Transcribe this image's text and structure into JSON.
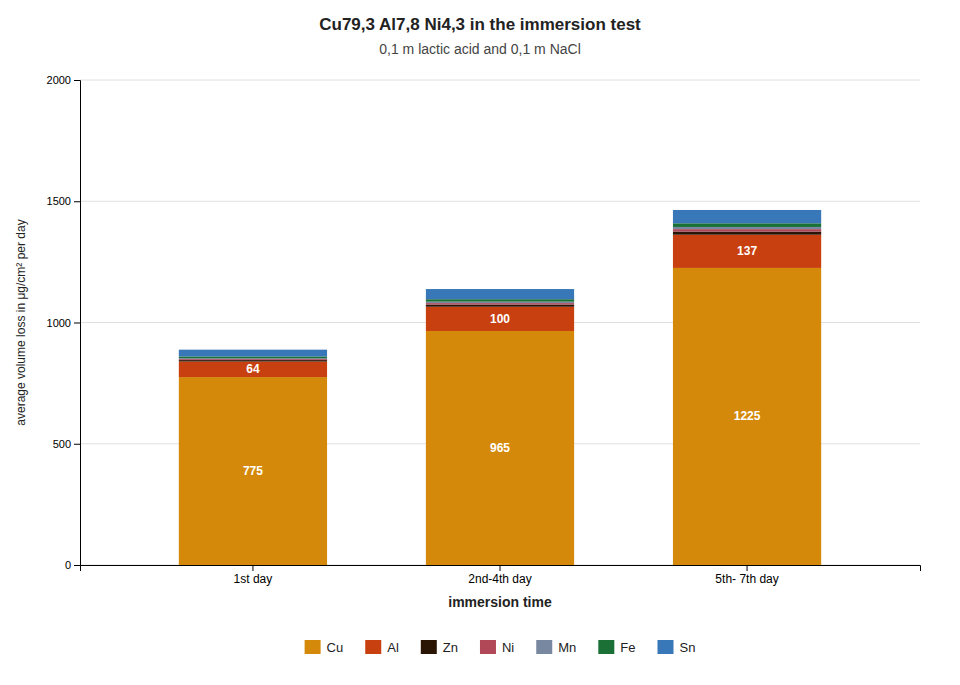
{
  "chart_data": {
    "type": "bar",
    "stacked": true,
    "title": "Cu79,3 Al7,8 Ni4,3 in the immersion test",
    "subtitle": "0,1 m lactic acid and 0,1 m NaCl",
    "x_label": "immersion time",
    "y_label": "average volume loss in μg/cm² per day",
    "categories": [
      "1st day",
      "2nd-4th day",
      "5th- 7th day"
    ],
    "series": [
      {
        "name": "Cu",
        "color": "#D4890A",
        "values": [
          775,
          965,
          1225
        ],
        "data_labels": true
      },
      {
        "name": "Al",
        "color": "#C84010",
        "values": [
          64,
          100,
          137
        ],
        "data_labels": true
      },
      {
        "name": "Zn",
        "color": "#2A1505",
        "values": [
          6,
          9,
          13
        ]
      },
      {
        "name": "Ni",
        "color": "#B04858",
        "values": [
          4,
          6,
          10
        ]
      },
      {
        "name": "Mn",
        "color": "#7888A0",
        "values": [
          4,
          6,
          9
        ]
      },
      {
        "name": "Fe",
        "color": "#1A7035",
        "values": [
          7,
          10,
          15
        ]
      },
      {
        "name": "Sn",
        "color": "#3878B8",
        "values": [
          28,
          42,
          55
        ]
      }
    ],
    "ylim": [
      0,
      2000
    ],
    "yticks": [
      0,
      500,
      1000,
      1500,
      2000
    ],
    "grid": true,
    "legend": "bottom"
  }
}
